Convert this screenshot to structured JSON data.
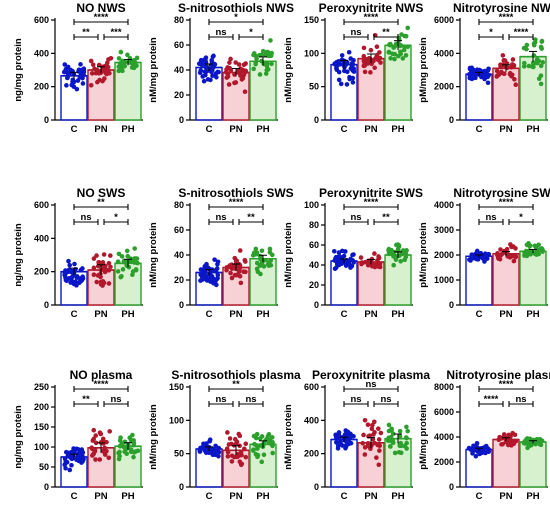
{
  "chart_data": [
    {
      "type": "bar",
      "title": "NO NWS",
      "ylabel": "ng/mg protein",
      "ylim": [
        0,
        600
      ],
      "yticks": [
        "0",
        "200",
        "400",
        "600"
      ],
      "categories": [
        "C",
        "PN",
        "PH"
      ],
      "values": [
        265,
        300,
        345
      ],
      "spread": [
        60,
        55,
        50
      ],
      "significance": [
        {
          "from": 0,
          "to": 2,
          "label": "****"
        },
        {
          "from": 0,
          "to": 1,
          "label": "**"
        },
        {
          "from": 1,
          "to": 2,
          "label": "***"
        }
      ]
    },
    {
      "type": "bar",
      "title": "S-nitrosothiols NWS",
      "ylabel": "nM/mg protein",
      "ylim": [
        0,
        80
      ],
      "yticks": [
        "0",
        "20",
        "40",
        "60",
        "80"
      ],
      "categories": [
        "C",
        "PN",
        "PH"
      ],
      "values": [
        42,
        38,
        47
      ],
      "spread": [
        8,
        9,
        10
      ],
      "significance": [
        {
          "from": 0,
          "to": 2,
          "label": "*"
        },
        {
          "from": 0,
          "to": 1,
          "label": "ns"
        },
        {
          "from": 1,
          "to": 2,
          "label": "*"
        }
      ]
    },
    {
      "type": "bar",
      "title": "Peroxynitrite NWS",
      "ylabel": "nM/mg protein",
      "ylim": [
        0,
        150
      ],
      "yticks": [
        "0",
        "50",
        "100",
        "150"
      ],
      "categories": [
        "C",
        "PN",
        "PH"
      ],
      "values": [
        83,
        92,
        112
      ],
      "spread": [
        18,
        20,
        20
      ],
      "significance": [
        {
          "from": 0,
          "to": 2,
          "label": "****"
        },
        {
          "from": 0,
          "to": 1,
          "label": "ns"
        },
        {
          "from": 1,
          "to": 2,
          "label": "**"
        }
      ]
    },
    {
      "type": "bar",
      "title": "Nitrotyrosine NWS",
      "ylabel": "pM/mg protein",
      "ylim": [
        0,
        6000
      ],
      "yticks": [
        "0",
        "2000",
        "4000",
        "6000"
      ],
      "categories": [
        "C",
        "PN",
        "PH"
      ],
      "values": [
        2750,
        3100,
        3800
      ],
      "spread": [
        300,
        600,
        900
      ],
      "significance": [
        {
          "from": 0,
          "to": 2,
          "label": "****"
        },
        {
          "from": 0,
          "to": 1,
          "label": "*"
        },
        {
          "from": 1,
          "to": 2,
          "label": "****"
        }
      ]
    },
    {
      "type": "bar",
      "title": "NO SWS",
      "ylabel": "ng/mg protein",
      "ylim": [
        0,
        600
      ],
      "yticks": [
        "0",
        "200",
        "400",
        "600"
      ],
      "categories": [
        "C",
        "PN",
        "PH"
      ],
      "values": [
        200,
        210,
        250
      ],
      "spread": [
        60,
        90,
        70
      ],
      "significance": [
        {
          "from": 0,
          "to": 2,
          "label": "**"
        },
        {
          "from": 0,
          "to": 1,
          "label": "ns"
        },
        {
          "from": 1,
          "to": 2,
          "label": "*"
        }
      ]
    },
    {
      "type": "bar",
      "title": "S-nitrosothiols SWS",
      "ylabel": "nM/mg protein",
      "ylim": [
        0,
        80
      ],
      "yticks": [
        "0",
        "20",
        "40",
        "60",
        "80"
      ],
      "categories": [
        "C",
        "PN",
        "PH"
      ],
      "values": [
        26,
        30,
        37
      ],
      "spread": [
        7,
        8,
        8
      ],
      "significance": [
        {
          "from": 0,
          "to": 2,
          "label": "****"
        },
        {
          "from": 0,
          "to": 1,
          "label": "ns"
        },
        {
          "from": 1,
          "to": 2,
          "label": "**"
        }
      ]
    },
    {
      "type": "bar",
      "title": "Peroxynitrite SWS",
      "ylabel": "nM/mg protein",
      "ylim": [
        0,
        100
      ],
      "yticks": [
        "0",
        "20",
        "40",
        "60",
        "80",
        "100"
      ],
      "categories": [
        "C",
        "PN",
        "PH"
      ],
      "values": [
        44,
        43,
        50
      ],
      "spread": [
        6,
        7,
        9
      ],
      "significance": [
        {
          "from": 0,
          "to": 2,
          "label": "****"
        },
        {
          "from": 0,
          "to": 1,
          "label": "ns"
        },
        {
          "from": 1,
          "to": 2,
          "label": "**"
        }
      ]
    },
    {
      "type": "bar",
      "title": "Nitrotyrosine SWS",
      "ylabel": "pM/mg protein",
      "ylim": [
        0,
        4000
      ],
      "yticks": [
        "0",
        "1000",
        "2000",
        "3000",
        "4000"
      ],
      "categories": [
        "C",
        "PN",
        "PH"
      ],
      "values": [
        1950,
        2050,
        2150
      ],
      "spread": [
        150,
        250,
        200
      ],
      "significance": [
        {
          "from": 0,
          "to": 2,
          "label": "****"
        },
        {
          "from": 0,
          "to": 1,
          "label": "ns"
        },
        {
          "from": 1,
          "to": 2,
          "label": "*"
        }
      ]
    },
    {
      "type": "bar",
      "title": "NO plasma",
      "ylabel": "ng/mg protein",
      "ylim": [
        0,
        250
      ],
      "yticks": [
        "0",
        "50",
        "100",
        "150",
        "200",
        "250"
      ],
      "categories": [
        "C",
        "PN",
        "PH"
      ],
      "values": [
        75,
        98,
        102
      ],
      "spread": [
        20,
        35,
        25
      ],
      "significance": [
        {
          "from": 0,
          "to": 2,
          "label": "****"
        },
        {
          "from": 0,
          "to": 1,
          "label": "**"
        },
        {
          "from": 1,
          "to": 2,
          "label": "ns"
        }
      ]
    },
    {
      "type": "bar",
      "title": "S-nitrosothiols plasma",
      "ylabel": "nM/mg protein",
      "ylim": [
        0,
        150
      ],
      "yticks": [
        "0",
        "50",
        "100",
        "150"
      ],
      "categories": [
        "C",
        "PN",
        "PH"
      ],
      "values": [
        57,
        55,
        64
      ],
      "spread": [
        9,
        20,
        15
      ],
      "significance": [
        {
          "from": 0,
          "to": 2,
          "label": "**"
        },
        {
          "from": 0,
          "to": 1,
          "label": "ns"
        },
        {
          "from": 1,
          "to": 2,
          "label": "ns"
        }
      ]
    },
    {
      "type": "bar",
      "title": "Peroxynitrite plasma",
      "ylabel": "nM/mg protein",
      "ylim": [
        0,
        600
      ],
      "yticks": [
        "0",
        "200",
        "400",
        "600"
      ],
      "categories": [
        "C",
        "PN",
        "PH"
      ],
      "values": [
        285,
        265,
        290
      ],
      "spread": [
        40,
        90,
        80
      ],
      "significance": [
        {
          "from": 0,
          "to": 2,
          "label": "ns"
        },
        {
          "from": 0,
          "to": 1,
          "label": "ns"
        },
        {
          "from": 1,
          "to": 2,
          "label": "ns"
        }
      ]
    },
    {
      "type": "bar",
      "title": "Nitrotyrosine plasma",
      "ylabel": "pM/mg protein",
      "ylim": [
        0,
        8000
      ],
      "yticks": [
        "0",
        "2000",
        "4000",
        "6000",
        "8000"
      ],
      "categories": [
        "C",
        "PN",
        "PH"
      ],
      "values": [
        3000,
        3800,
        3600
      ],
      "spread": [
        300,
        400,
        300
      ],
      "significance": [
        {
          "from": 0,
          "to": 2,
          "label": "****"
        },
        {
          "from": 0,
          "to": 1,
          "label": "****"
        },
        {
          "from": 1,
          "to": 2,
          "label": "ns"
        }
      ]
    }
  ],
  "colors": {
    "C": "#0a17c8",
    "PN": "#b2182b",
    "PH": "#2ca02c",
    "PN_fill": "#f6c5cc",
    "PH_fill": "#cdeec2"
  }
}
